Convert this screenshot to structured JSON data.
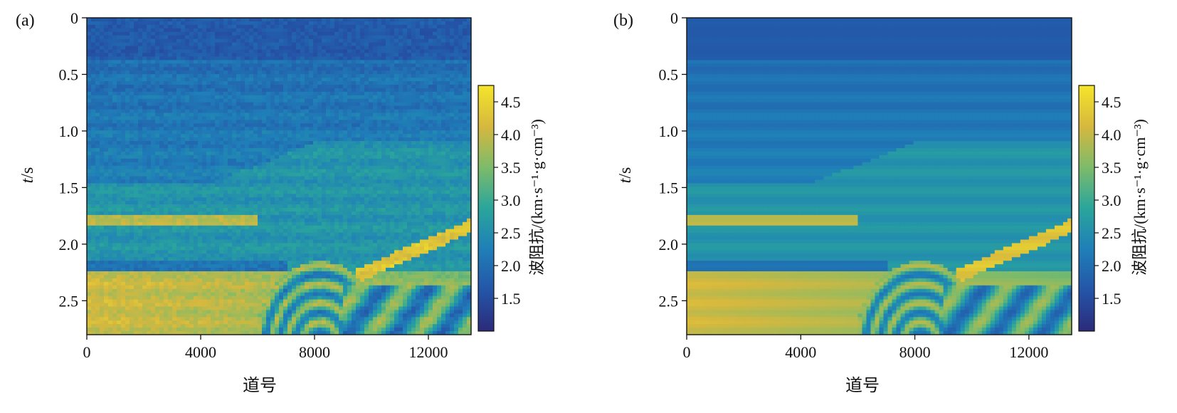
{
  "figure": {
    "panels": [
      {
        "label": "(a)",
        "xlabel": "道号",
        "ylabel_italic": "t",
        "ylabel_rest": "/s",
        "colorbar_label": "波阻抗/(km·s⁻¹·g·cm⁻³)"
      },
      {
        "label": "(b)",
        "xlabel": "道号",
        "ylabel_italic": "t",
        "ylabel_rest": "/s",
        "colorbar_label": "波阻抗/(km·s⁻¹·g·cm⁻³)"
      }
    ]
  },
  "chart_data": [
    {
      "type": "heatmap",
      "panel": "(a)",
      "xlabel": "道号",
      "ylabel": "t/s",
      "xlim": [
        0,
        13500
      ],
      "ylim": [
        2.8,
        0
      ],
      "xticks": [
        0,
        4000,
        8000,
        12000
      ],
      "yticks": [
        0,
        0.5,
        1.0,
        1.5,
        2.0,
        2.5
      ],
      "ytick_labels": [
        "0",
        "0.5",
        "1.0",
        "1.5",
        "2.0",
        "2.5"
      ],
      "colorbar": {
        "label": "波阻抗/(km·s⁻¹·g·cm⁻³)",
        "range": [
          1.0,
          4.75
        ],
        "ticks": [
          1.5,
          2.0,
          2.5,
          3.0,
          3.5,
          4.0,
          4.5
        ],
        "tick_labels": [
          "1.5",
          "2.0",
          "2.5",
          "3.0",
          "3.5",
          "4.0",
          "4.5"
        ],
        "colormap": [
          "#2c2a7a",
          "#2455a8",
          "#1f7fb8",
          "#2aa59c",
          "#7dbb6a",
          "#d6b83e",
          "#f5e52a"
        ]
      },
      "noisy": true
    },
    {
      "type": "heatmap",
      "panel": "(b)",
      "xlabel": "道号",
      "ylabel": "t/s",
      "xlim": [
        0,
        13500
      ],
      "ylim": [
        2.8,
        0
      ],
      "xticks": [
        0,
        4000,
        8000,
        12000
      ],
      "yticks": [
        0,
        0.5,
        1.0,
        1.5,
        2.0,
        2.5
      ],
      "ytick_labels": [
        "0",
        "0.5",
        "1.0",
        "1.5",
        "2.0",
        "2.5"
      ],
      "colorbar": {
        "label": "波阻抗/(km·s⁻¹·g·cm⁻³)",
        "range": [
          1.0,
          4.75
        ],
        "ticks": [
          1.5,
          2.0,
          2.5,
          3.0,
          3.5,
          4.0,
          4.5
        ],
        "tick_labels": [
          "1.5",
          "2.0",
          "2.5",
          "3.0",
          "3.5",
          "4.0",
          "4.5"
        ],
        "colormap": [
          "#2c2a7a",
          "#2455a8",
          "#1f7fb8",
          "#2aa59c",
          "#7dbb6a",
          "#d6b83e",
          "#f5e52a"
        ]
      },
      "noisy": false
    }
  ]
}
